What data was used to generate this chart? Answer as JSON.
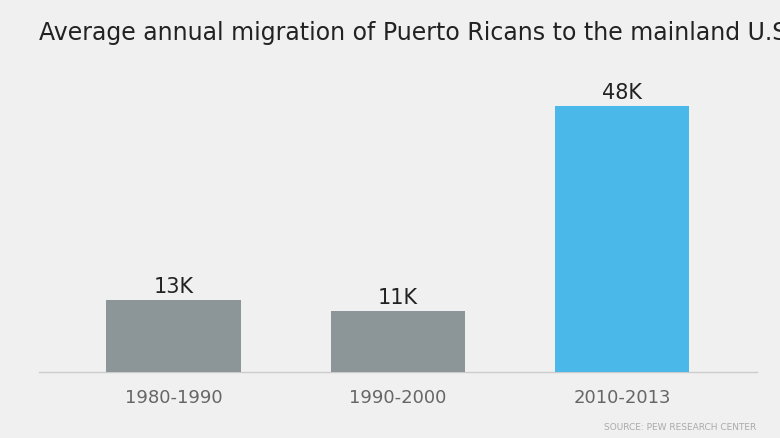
{
  "title": "Average annual migration of Puerto Ricans to the mainland U.S.",
  "categories": [
    "1980-1990",
    "1990-2000",
    "2010-2013"
  ],
  "values": [
    13,
    11,
    48
  ],
  "labels": [
    "13K",
    "11K",
    "48K"
  ],
  "bar_colors": [
    "#8c9598",
    "#8c9598",
    "#4ab8e8"
  ],
  "background_color": "#f0f0f0",
  "title_fontsize": 17,
  "label_fontsize": 15,
  "tick_fontsize": 13,
  "source_text": "SOURCE: PEW RESEARCH CENTER",
  "source_fontsize": 6.5,
  "ylim": [
    0,
    57
  ],
  "yticks": [
    0,
    10,
    20,
    30,
    40,
    50
  ],
  "grid_color": "#cccccc",
  "title_color": "#222222",
  "tick_color": "#666666",
  "source_color": "#aaaaaa",
  "bar_width": 0.6
}
